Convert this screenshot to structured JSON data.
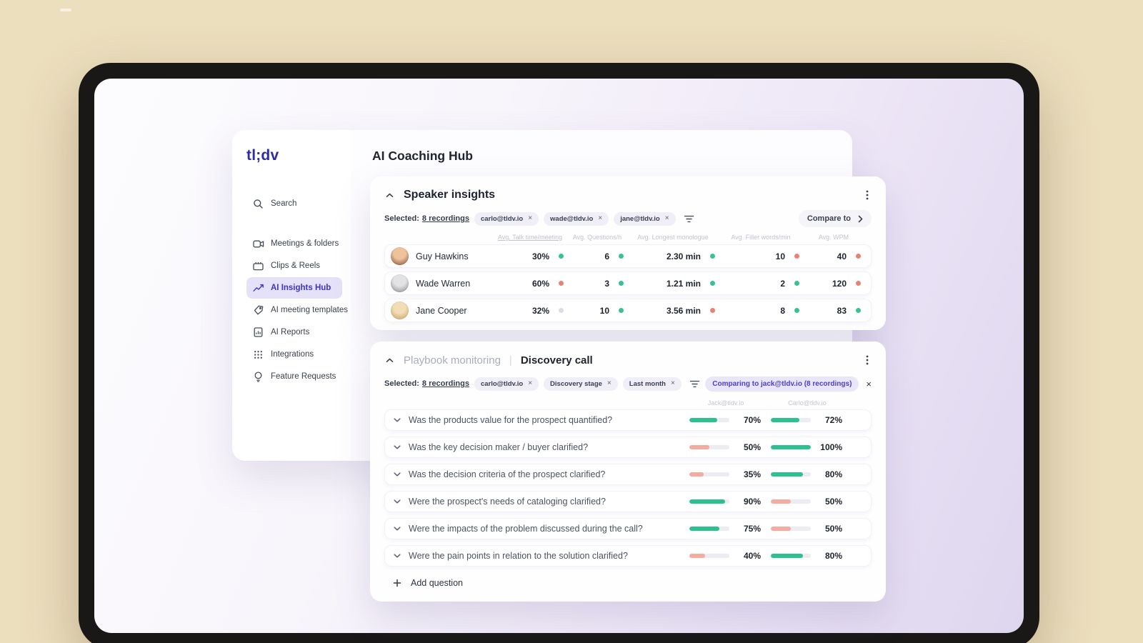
{
  "colors": {
    "background": "#ecdfbe",
    "frame": "#191817",
    "accent": "#3d34c7",
    "active_item_bg": "#e5e1f8",
    "good": "#36c38f",
    "bad": "#ea8175",
    "neutral": "#dcdde4",
    "bar_good": "#2cc28d",
    "bar_bad": "#f3ac9f",
    "comparing_chip_bg": "#eae6fa",
    "comparing_chip_text": "#4a3fd0"
  },
  "sidebar": {
    "logo": "tl;dv",
    "search_label": "Search",
    "items": [
      {
        "label": "Meetings & folders",
        "icon": "video-camera-icon",
        "active": false
      },
      {
        "label": "Clips & Reels",
        "icon": "clapperboard-icon",
        "active": false
      },
      {
        "label": "AI Insights Hub",
        "icon": "insights-chart-icon",
        "active": true
      },
      {
        "label": "AI meeting templates",
        "icon": "template-tag-icon",
        "active": false
      },
      {
        "label": "AI Reports",
        "icon": "report-doc-icon",
        "active": false
      },
      {
        "label": "Integrations",
        "icon": "grid-dots-icon",
        "active": false
      },
      {
        "label": "Feature Requests",
        "icon": "lightbulb-icon",
        "active": false
      }
    ]
  },
  "header": {
    "title": "AI Coaching Hub"
  },
  "speaker": {
    "title": "Speaker insights",
    "selected_label": "Selected:",
    "selected_count": "8 recordings",
    "chips": [
      "carlo@tldv.io",
      "wade@tldv.io",
      "jane@tldv.io"
    ],
    "compare_label": "Compare to",
    "columns": [
      "Avg. Talk time/meeting",
      "Avg. Questions/h",
      "Avg. Longest monologue",
      "Avg. Filler words/min",
      "Avg. WPM"
    ],
    "rows": [
      {
        "name": "Guy Hawkins",
        "avatar": [
          "#f0c29c",
          "#7a4a33"
        ],
        "cells": [
          {
            "value": "30%",
            "status": "good"
          },
          {
            "value": "6",
            "status": "good"
          },
          {
            "value": "2.30 min",
            "status": "good"
          },
          {
            "value": "10",
            "status": "bad"
          },
          {
            "value": "40",
            "status": "bad"
          }
        ]
      },
      {
        "name": "Wade Warren",
        "avatar": [
          "#e3e3e6",
          "#84848b"
        ],
        "cells": [
          {
            "value": "60%",
            "status": "bad"
          },
          {
            "value": "3",
            "status": "good"
          },
          {
            "value": "1.21 min",
            "status": "good"
          },
          {
            "value": "2",
            "status": "good"
          },
          {
            "value": "120",
            "status": "bad"
          }
        ]
      },
      {
        "name": "Jane Cooper",
        "avatar": [
          "#f2ddb5",
          "#c59a5d"
        ],
        "cells": [
          {
            "value": "32%",
            "status": "neutral"
          },
          {
            "value": "10",
            "status": "good"
          },
          {
            "value": "3.56 min",
            "status": "bad"
          },
          {
            "value": "8",
            "status": "good"
          },
          {
            "value": "83",
            "status": "good"
          }
        ]
      }
    ]
  },
  "playbook": {
    "title_muted": "Playbook monitoring",
    "divider": "|",
    "title_active": "Discovery call",
    "selected_label": "Selected:",
    "selected_count": "8 recordings",
    "chips": [
      "carlo@tldv.io",
      "Discovery stage",
      "Last month"
    ],
    "comparing_label": "Comparing to jack@tldv.io (8 recordings)",
    "col_left": "Jack@tldv.io",
    "col_right": "Carlo@tldv.io",
    "questions": [
      {
        "text": "Was the products value for the prospect quantified?",
        "bars": [
          {
            "pct": 70,
            "status": "good"
          },
          {
            "pct": 72,
            "status": "good"
          }
        ]
      },
      {
        "text": "Was the key decision maker / buyer clarified?",
        "bars": [
          {
            "pct": 50,
            "status": "bad"
          },
          {
            "pct": 100,
            "status": "good"
          }
        ]
      },
      {
        "text": "Was the decision criteria of the prospect clarified?",
        "bars": [
          {
            "pct": 35,
            "status": "bad"
          },
          {
            "pct": 80,
            "status": "good"
          }
        ]
      },
      {
        "text": "Were the prospect's needs of cataloging clarified?",
        "bars": [
          {
            "pct": 90,
            "status": "good"
          },
          {
            "pct": 50,
            "status": "bad"
          }
        ]
      },
      {
        "text": "Were the impacts of the problem discussed during the call?",
        "bars": [
          {
            "pct": 75,
            "status": "good"
          },
          {
            "pct": 50,
            "status": "bad"
          }
        ]
      },
      {
        "text": "Were the pain points in relation to the solution clarified?",
        "bars": [
          {
            "pct": 40,
            "status": "bad"
          },
          {
            "pct": 80,
            "status": "good"
          }
        ]
      }
    ],
    "add_label": "Add question"
  }
}
